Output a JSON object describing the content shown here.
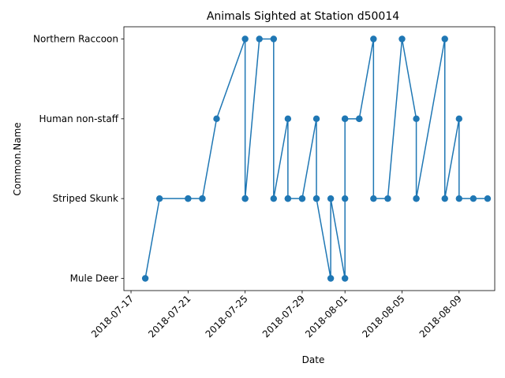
{
  "chart_data": {
    "type": "line",
    "title": "Animals Sighted at Station d50014",
    "xlabel": "Date",
    "ylabel": "Common.Name",
    "categories": [
      "Mule Deer",
      "Striped Skunk",
      "Human non-staff",
      "Northern Raccoon"
    ],
    "x_ticks": [
      "2018-07-17",
      "2018-07-21",
      "2018-07-25",
      "2018-07-29",
      "2018-08-01",
      "2018-08-05",
      "2018-08-09"
    ],
    "xlim": [
      "2018-07-16 12:00",
      "2018-08-11 12:00"
    ],
    "color": "#1f77b4",
    "grid": false,
    "marker": "circle",
    "series": [
      {
        "x": [
          "2018-07-18",
          "2018-07-19",
          "2018-07-21",
          "2018-07-21",
          "2018-07-22",
          "2018-07-22",
          "2018-07-23",
          "2018-07-25",
          "2018-07-25",
          "2018-07-25",
          "2018-07-26",
          "2018-07-27",
          "2018-07-27",
          "2018-07-28",
          "2018-07-28",
          "2018-07-28",
          "2018-07-29",
          "2018-07-29",
          "2018-07-30",
          "2018-07-30",
          "2018-07-30",
          "2018-07-31",
          "2018-07-31",
          "2018-08-01",
          "2018-08-01",
          "2018-08-01",
          "2018-08-01",
          "2018-08-02",
          "2018-08-02",
          "2018-08-03",
          "2018-08-03",
          "2018-08-04",
          "2018-08-05",
          "2018-08-06",
          "2018-08-06",
          "2018-08-06",
          "2018-08-08",
          "2018-08-08",
          "2018-08-09",
          "2018-08-09",
          "2018-08-10",
          "2018-08-11"
        ],
        "y": [
          "Mule Deer",
          "Striped Skunk",
          "Striped Skunk",
          "Striped Skunk",
          "Striped Skunk",
          "Striped Skunk",
          "Human non-staff",
          "Northern Raccoon",
          "Striped Skunk",
          "Striped Skunk",
          "Northern Raccoon",
          "Northern Raccoon",
          "Striped Skunk",
          "Human non-staff",
          "Striped Skunk",
          "Striped Skunk",
          "Striped Skunk",
          "Striped Skunk",
          "Human non-staff",
          "Striped Skunk",
          "Striped Skunk",
          "Mule Deer",
          "Striped Skunk",
          "Mule Deer",
          "Striped Skunk",
          "Human non-staff",
          "Human non-staff",
          "Human non-staff",
          "Human non-staff",
          "Northern Raccoon",
          "Striped Skunk",
          "Striped Skunk",
          "Northern Raccoon",
          "Human non-staff",
          "Striped Skunk",
          "Striped Skunk",
          "Northern Raccoon",
          "Striped Skunk",
          "Human non-staff",
          "Striped Skunk",
          "Striped Skunk",
          "Striped Skunk"
        ]
      }
    ]
  }
}
